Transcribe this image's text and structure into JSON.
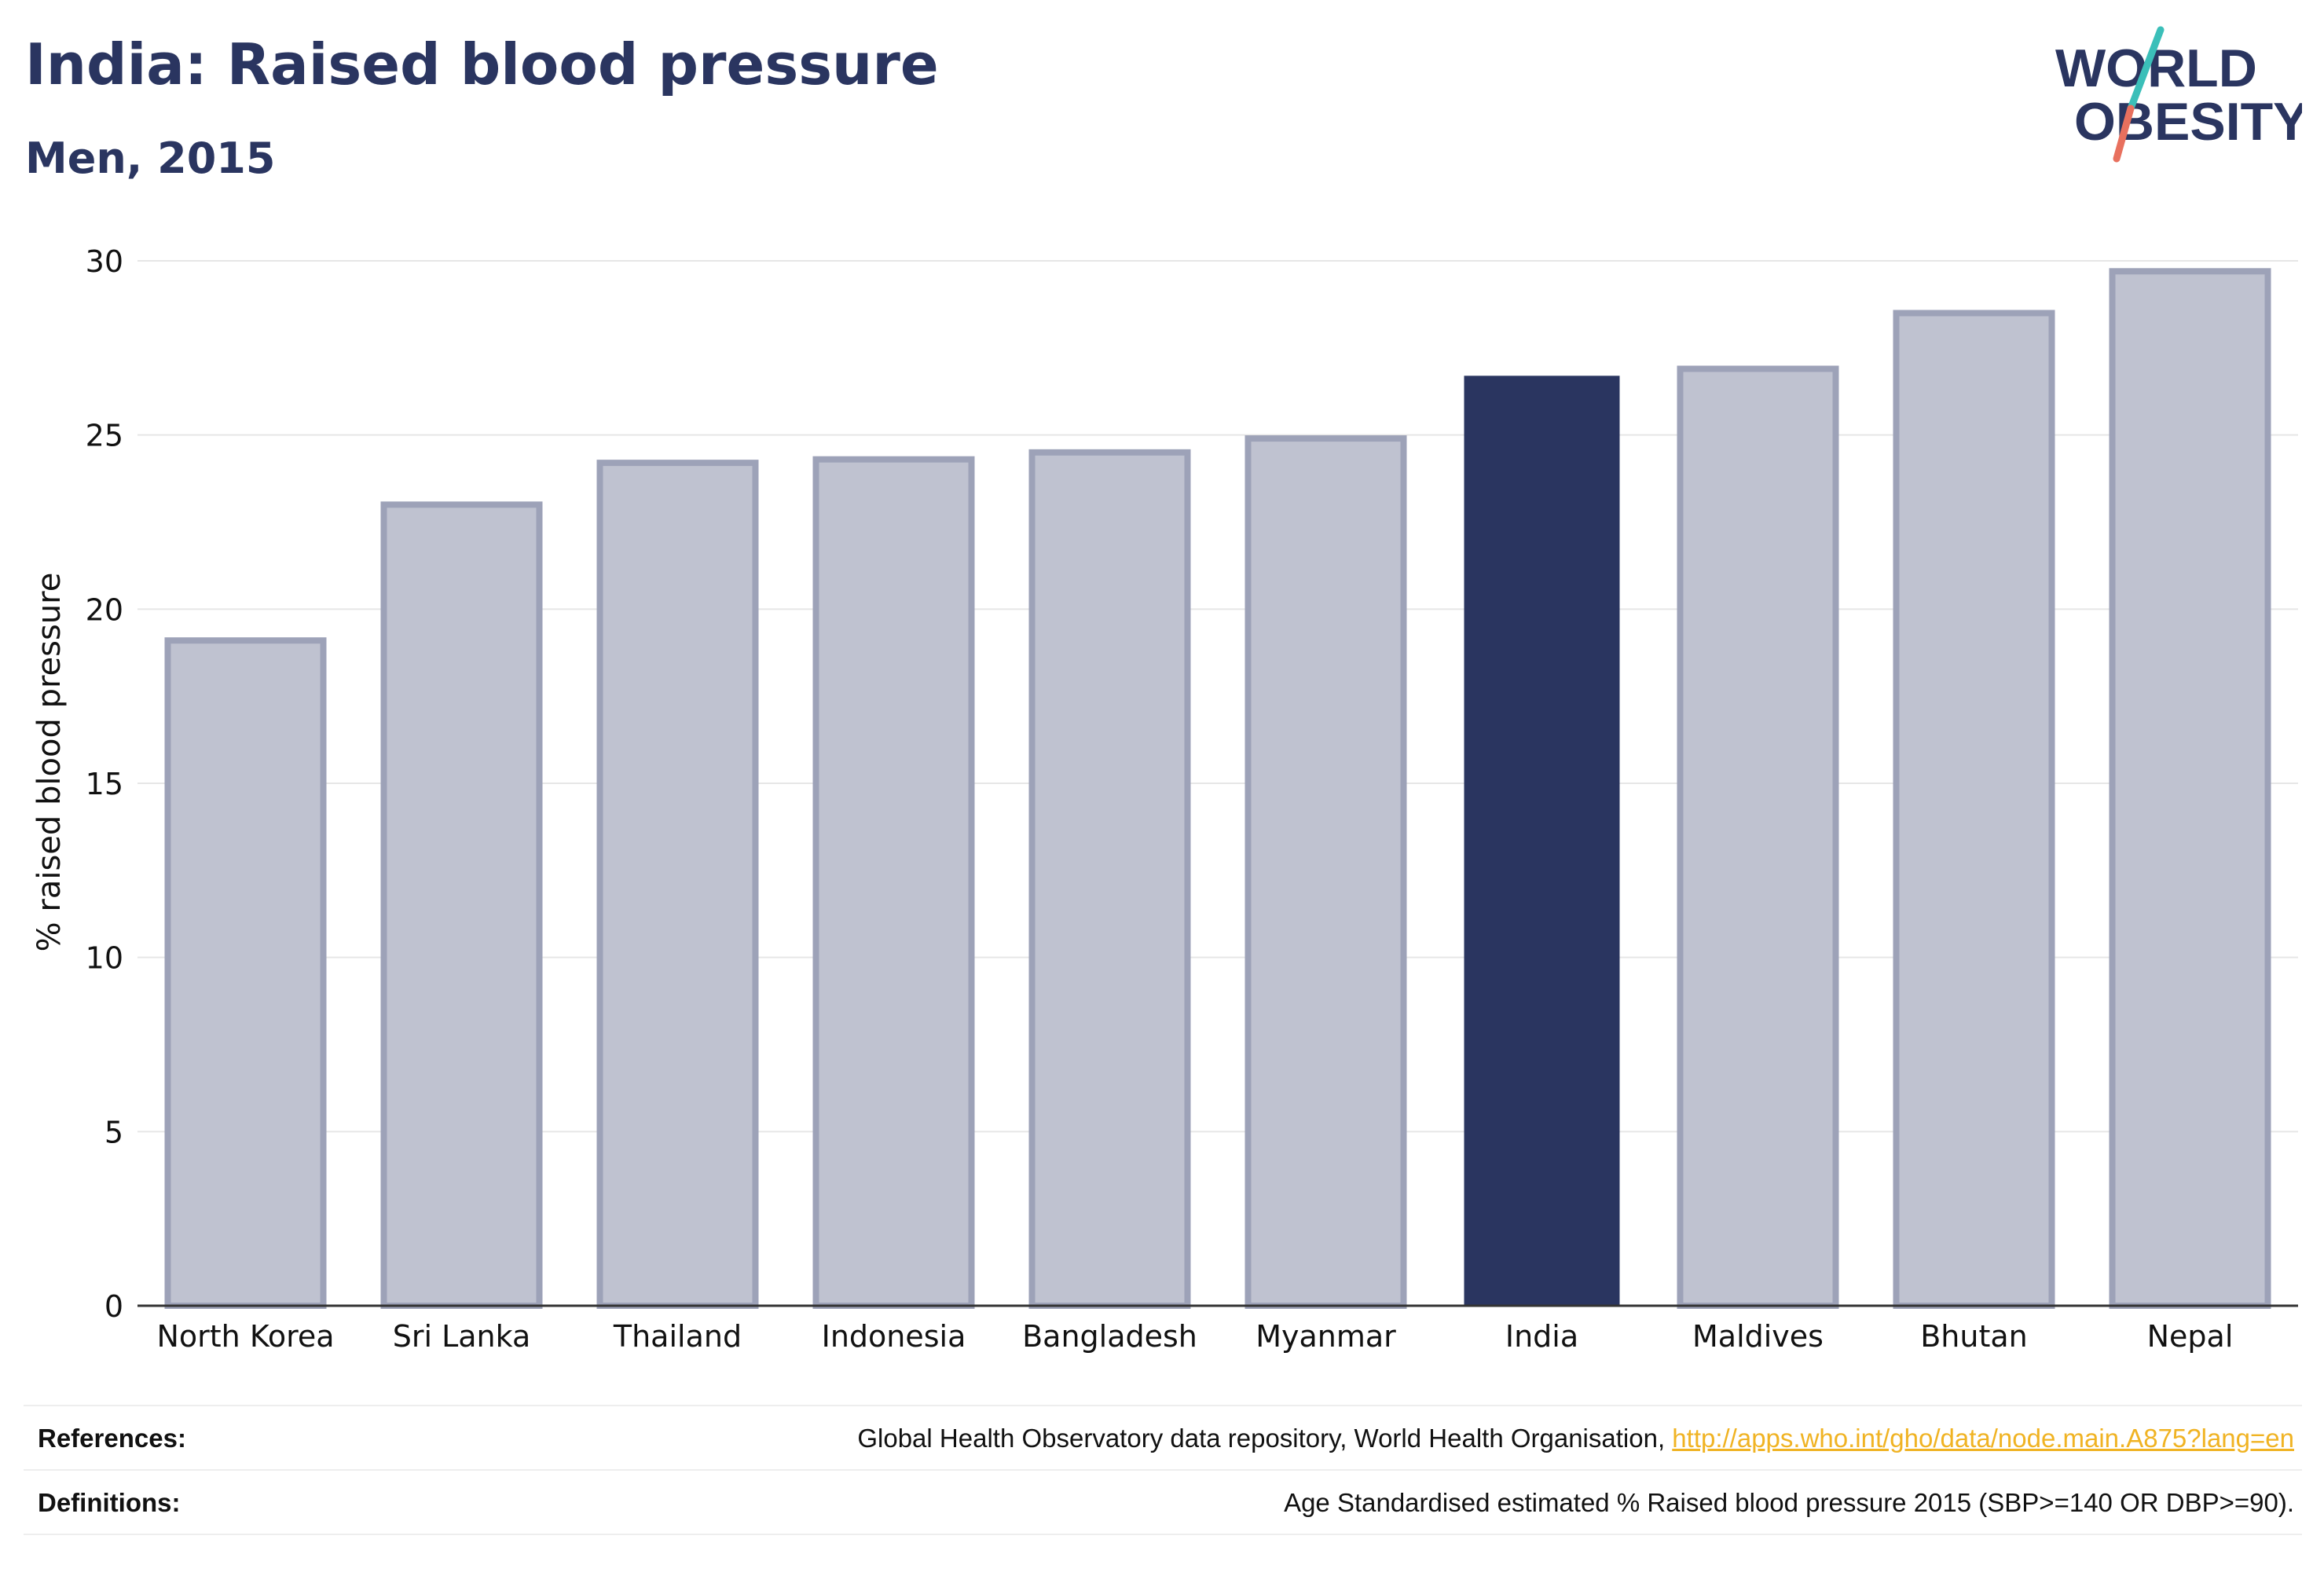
{
  "header": {
    "title": "India: Raised blood pressure",
    "subtitle": "Men, 2015"
  },
  "logo": {
    "line1": "WORLD",
    "line2": "OBESITY",
    "colors": {
      "text": "#2a3560",
      "slash_top": "#3bbfb9",
      "slash_bottom": "#e8705e"
    }
  },
  "chart_data": {
    "type": "bar",
    "title": "",
    "xlabel": "",
    "ylabel": "% raised blood pressure",
    "ylim": [
      0,
      30
    ],
    "yticks": [
      0,
      5,
      10,
      15,
      20,
      25,
      30
    ],
    "grid": true,
    "categories": [
      "North Korea",
      "Sri Lanka",
      "Thailand",
      "Indonesia",
      "Bangladesh",
      "Myanmar",
      "India",
      "Maldives",
      "Bhutan",
      "Nepal"
    ],
    "values": [
      19.1,
      23.0,
      24.2,
      24.3,
      24.5,
      24.9,
      26.7,
      26.9,
      28.5,
      29.7
    ],
    "highlight": "India",
    "colors": {
      "bar": "#bfc2d0",
      "bar_edge": "#9da2b8",
      "highlight": "#2a3560",
      "grid": "#e6e6e6",
      "axis": "#333333"
    }
  },
  "footer": {
    "references_label": "References:",
    "references_text": "Global Health Observatory data repository, World Health Organisation, ",
    "references_link": "http://apps.who.int/gho/data/node.main.A875?lang=en",
    "definitions_label": "Definitions:",
    "definitions_text": "Age Standardised estimated % Raised blood pressure 2015 (SBP>=140 OR DBP>=90)."
  }
}
